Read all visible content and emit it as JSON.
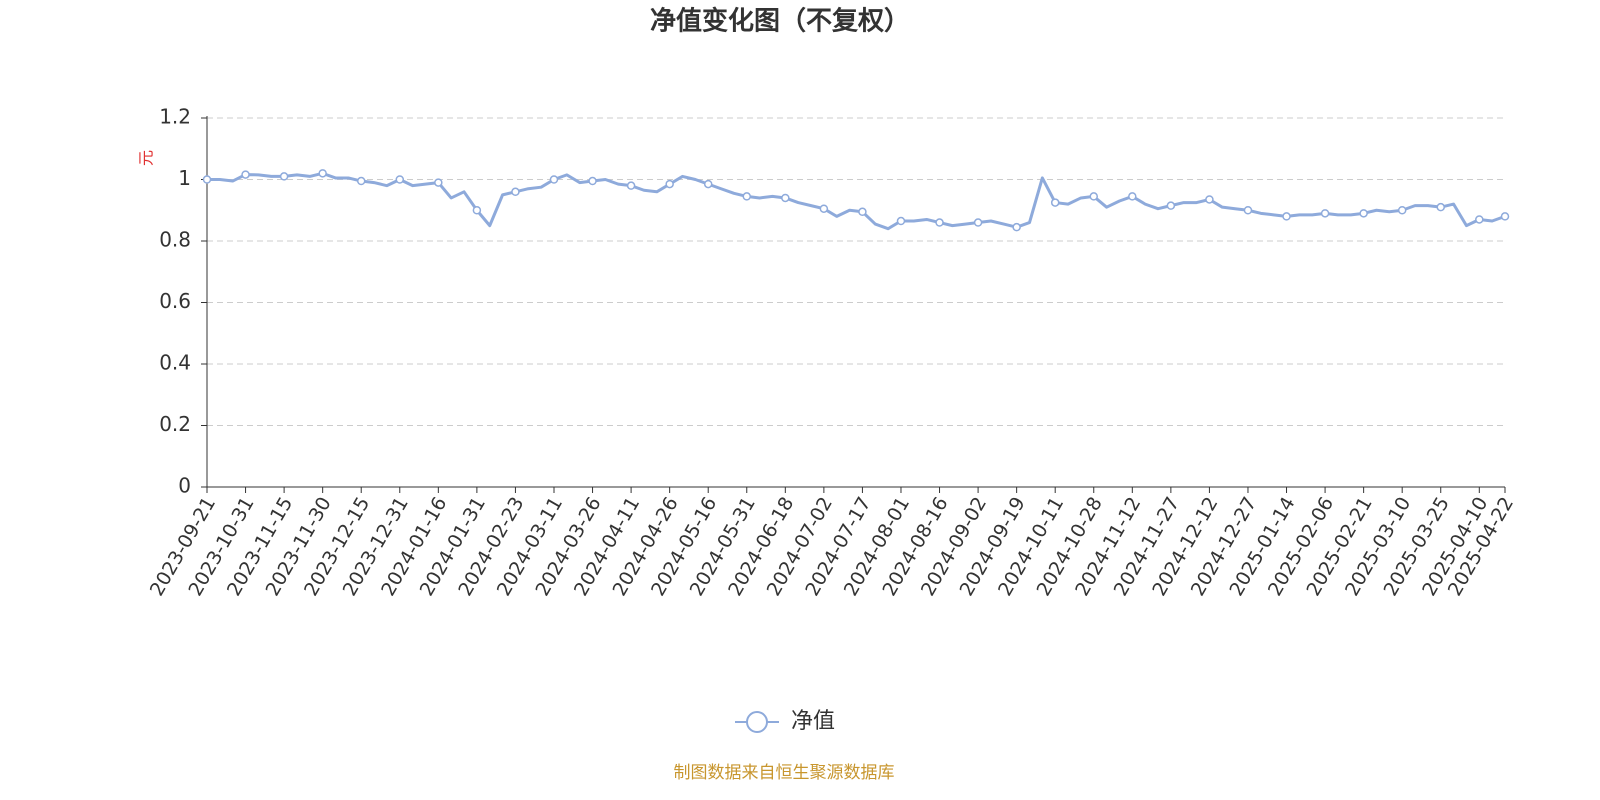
{
  "chart_data": {
    "type": "line",
    "title": "净值变化图（不复权）",
    "y_label": "元",
    "footer": "制图数据来自恒生聚源数据库",
    "categories": [
      "2023-09-21",
      null,
      null,
      "2023-10-31",
      null,
      null,
      "2023-11-15",
      null,
      null,
      "2023-11-30",
      null,
      null,
      "2023-12-15",
      null,
      null,
      "2023-12-31",
      null,
      null,
      "2024-01-16",
      null,
      null,
      "2024-01-31",
      null,
      null,
      "2024-02-23",
      null,
      null,
      "2024-03-11",
      null,
      null,
      "2024-03-26",
      null,
      null,
      "2024-04-11",
      null,
      null,
      "2024-04-26",
      null,
      null,
      "2024-05-16",
      null,
      null,
      "2024-05-31",
      null,
      null,
      "2024-06-18",
      null,
      null,
      "2024-07-02",
      null,
      null,
      "2024-07-17",
      null,
      null,
      "2024-08-01",
      null,
      null,
      "2024-08-16",
      null,
      null,
      "2024-09-02",
      null,
      null,
      "2024-09-19",
      null,
      null,
      "2024-10-11",
      null,
      null,
      "2024-10-28",
      null,
      null,
      "2024-11-12",
      null,
      null,
      "2024-11-27",
      null,
      null,
      "2024-12-12",
      null,
      null,
      "2024-12-27",
      null,
      null,
      "2025-01-14",
      null,
      null,
      "2025-02-06",
      null,
      null,
      "2025-02-21",
      null,
      null,
      "2025-03-10",
      null,
      null,
      "2025-03-25",
      null,
      null,
      "2025-04-10",
      null,
      "2025-04-22"
    ],
    "series": [
      {
        "name": "净值",
        "color": "#8eaadb",
        "values": [
          1.0,
          1.0,
          0.995,
          1.016,
          1.015,
          1.01,
          1.01,
          1.015,
          1.01,
          1.02,
          1.005,
          1.005,
          0.995,
          0.99,
          0.98,
          1.0,
          0.98,
          0.985,
          0.99,
          0.94,
          0.96,
          0.9,
          0.85,
          0.95,
          0.96,
          0.97,
          0.975,
          1.0,
          1.015,
          0.99,
          0.995,
          1.0,
          0.985,
          0.98,
          0.965,
          0.96,
          0.985,
          1.01,
          1.0,
          0.985,
          0.97,
          0.955,
          0.945,
          0.94,
          0.945,
          0.94,
          0.925,
          0.915,
          0.905,
          0.88,
          0.9,
          0.895,
          0.855,
          0.84,
          0.865,
          0.865,
          0.87,
          0.86,
          0.85,
          0.855,
          0.86,
          0.865,
          0.855,
          0.845,
          0.86,
          1.005,
          0.925,
          0.92,
          0.94,
          0.945,
          0.91,
          0.93,
          0.945,
          0.92,
          0.905,
          0.915,
          0.925,
          0.925,
          0.935,
          0.91,
          0.905,
          0.9,
          0.89,
          0.885,
          0.88,
          0.885,
          0.885,
          0.89,
          0.885,
          0.885,
          0.89,
          0.9,
          0.895,
          0.9,
          0.915,
          0.915,
          0.91,
          0.92,
          0.85,
          0.87,
          0.865,
          0.88
        ]
      }
    ],
    "ylim": [
      0,
      1.2
    ],
    "yticks": [
      0,
      0.2,
      0.4,
      0.6,
      0.8,
      1,
      1.2
    ],
    "grid": true,
    "legend": "bottom"
  }
}
